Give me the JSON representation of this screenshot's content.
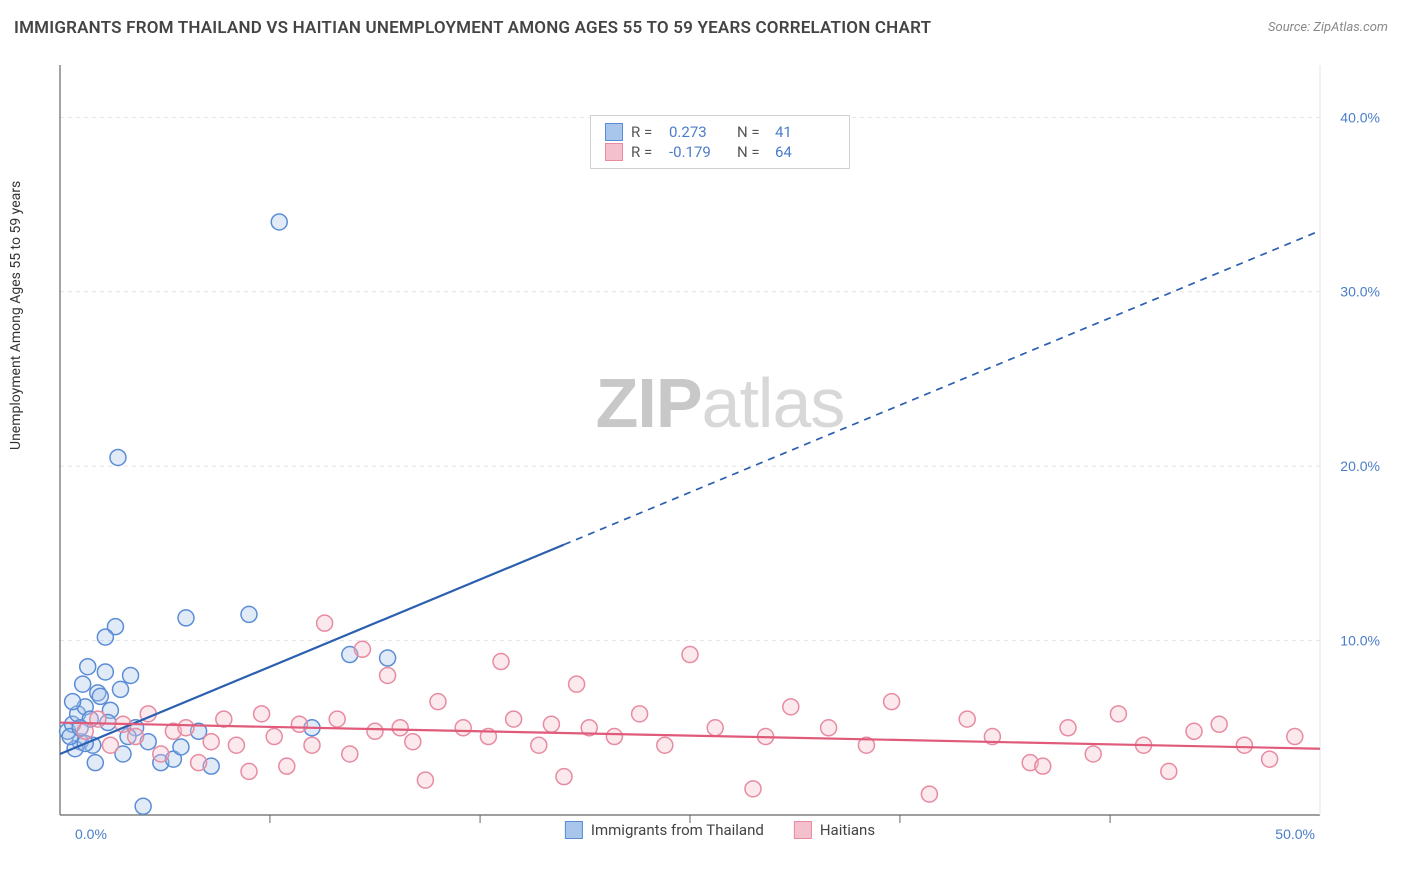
{
  "title": "IMMIGRANTS FROM THAILAND VS HAITIAN UNEMPLOYMENT AMONG AGES 55 TO 59 YEARS CORRELATION CHART",
  "source": "Source: ZipAtlas.com",
  "ylabel": "Unemployment Among Ages 55 to 59 years",
  "watermark": {
    "bold": "ZIP",
    "light": "atlas"
  },
  "chart": {
    "type": "scatter",
    "background_color": "#ffffff",
    "grid_color": "#e4e4e4",
    "axis_color": "#666666",
    "tick_color": "#4a7dc9",
    "xlim": [
      0,
      50
    ],
    "ylim": [
      0,
      43
    ],
    "xticks": [
      {
        "v": 0,
        "label": "0.0%"
      },
      {
        "v": 50,
        "label": "50.0%"
      }
    ],
    "xticks_minor": [
      8.33,
      16.67,
      25,
      33.33,
      41.67
    ],
    "yticks": [
      {
        "v": 10,
        "label": "10.0%"
      },
      {
        "v": 20,
        "label": "20.0%"
      },
      {
        "v": 30,
        "label": "30.0%"
      },
      {
        "v": 40,
        "label": "40.0%"
      }
    ],
    "marker_radius": 8,
    "marker_stroke_width": 1.5,
    "marker_fill_opacity": 0.35,
    "line_width": 2.2,
    "series": [
      {
        "name": "Immigrants from Thailand",
        "key": "thailand",
        "color": "#5b8dd6",
        "fill": "#a8c5eb",
        "line_color": "#2b5fb0",
        "R": "0.273",
        "N": "41",
        "trend": {
          "x1": 0,
          "y1": 3.5,
          "x2": 50,
          "y2": 33.5,
          "solid_until_x": 20
        },
        "points": [
          [
            0.3,
            4.8
          ],
          [
            0.5,
            5.2
          ],
          [
            0.8,
            4.2
          ],
          [
            0.7,
            5.8
          ],
          [
            1.0,
            6.2
          ],
          [
            0.6,
            3.8
          ],
          [
            1.2,
            5.5
          ],
          [
            0.4,
            4.5
          ],
          [
            1.5,
            7.0
          ],
          [
            1.8,
            8.2
          ],
          [
            2.0,
            6.0
          ],
          [
            1.3,
            4.0
          ],
          [
            2.5,
            3.5
          ],
          [
            2.2,
            10.8
          ],
          [
            1.8,
            10.2
          ],
          [
            2.8,
            8.0
          ],
          [
            3.0,
            5.0
          ],
          [
            3.5,
            4.2
          ],
          [
            4.0,
            3.0
          ],
          [
            4.5,
            3.2
          ],
          [
            5.0,
            11.3
          ],
          [
            5.5,
            4.8
          ],
          [
            6.0,
            2.8
          ],
          [
            2.3,
            20.5
          ],
          [
            7.5,
            11.5
          ],
          [
            8.7,
            34.0
          ],
          [
            10.0,
            5.0
          ],
          [
            11.5,
            9.2
          ],
          [
            13.0,
            9.0
          ],
          [
            0.9,
            7.5
          ],
          [
            1.1,
            8.5
          ],
          [
            1.4,
            3.0
          ],
          [
            0.5,
            6.5
          ],
          [
            2.7,
            4.5
          ],
          [
            3.3,
            0.5
          ],
          [
            1.9,
            5.3
          ],
          [
            2.4,
            7.2
          ],
          [
            0.8,
            5.0
          ],
          [
            1.6,
            6.8
          ],
          [
            4.8,
            3.9
          ],
          [
            1.0,
            4.1
          ]
        ]
      },
      {
        "name": "Haitians",
        "key": "haitians",
        "color": "#e88ba0",
        "fill": "#f4c0cd",
        "line_color": "#e05a7a",
        "R": "-0.179",
        "N": "64",
        "trend": {
          "x1": 0,
          "y1": 5.3,
          "x2": 50,
          "y2": 3.8,
          "solid_until_x": 50
        },
        "points": [
          [
            1.0,
            4.8
          ],
          [
            1.5,
            5.5
          ],
          [
            2.0,
            4.0
          ],
          [
            2.5,
            5.2
          ],
          [
            3.0,
            4.5
          ],
          [
            3.5,
            5.8
          ],
          [
            4.0,
            3.5
          ],
          [
            4.5,
            4.8
          ],
          [
            5.0,
            5.0
          ],
          [
            5.5,
            3.0
          ],
          [
            6.0,
            4.2
          ],
          [
            6.5,
            5.5
          ],
          [
            7.0,
            4.0
          ],
          [
            7.5,
            2.5
          ],
          [
            8.0,
            5.8
          ],
          [
            8.5,
            4.5
          ],
          [
            9.0,
            2.8
          ],
          [
            9.5,
            5.2
          ],
          [
            10.0,
            4.0
          ],
          [
            10.5,
            11.0
          ],
          [
            11.0,
            5.5
          ],
          [
            11.5,
            3.5
          ],
          [
            12.0,
            9.5
          ],
          [
            12.5,
            4.8
          ],
          [
            13.0,
            8.0
          ],
          [
            13.5,
            5.0
          ],
          [
            14.0,
            4.2
          ],
          [
            14.5,
            2.0
          ],
          [
            15.0,
            6.5
          ],
          [
            16.0,
            5.0
          ],
          [
            17.0,
            4.5
          ],
          [
            17.5,
            8.8
          ],
          [
            18.0,
            5.5
          ],
          [
            19.0,
            4.0
          ],
          [
            19.5,
            5.2
          ],
          [
            20.0,
            2.2
          ],
          [
            20.5,
            7.5
          ],
          [
            21.0,
            5.0
          ],
          [
            22.0,
            4.5
          ],
          [
            23.0,
            5.8
          ],
          [
            24.0,
            4.0
          ],
          [
            25.0,
            9.2
          ],
          [
            26.0,
            5.0
          ],
          [
            27.5,
            1.5
          ],
          [
            28.0,
            4.5
          ],
          [
            29.0,
            6.2
          ],
          [
            30.5,
            5.0
          ],
          [
            32.0,
            4.0
          ],
          [
            33.0,
            6.5
          ],
          [
            34.5,
            1.2
          ],
          [
            36.0,
            5.5
          ],
          [
            37.0,
            4.5
          ],
          [
            38.5,
            3.0
          ],
          [
            39.0,
            2.8
          ],
          [
            40.0,
            5.0
          ],
          [
            41.0,
            3.5
          ],
          [
            42.0,
            5.8
          ],
          [
            43.0,
            4.0
          ],
          [
            44.0,
            2.5
          ],
          [
            45.0,
            4.8
          ],
          [
            46.0,
            5.2
          ],
          [
            47.0,
            4.0
          ],
          [
            48.0,
            3.2
          ],
          [
            49.0,
            4.5
          ]
        ]
      }
    ]
  },
  "legend_top_labels": {
    "R": "R =",
    "N": "N ="
  },
  "legend_bottom": [
    {
      "key": "thailand",
      "label": "Immigrants from Thailand"
    },
    {
      "key": "haitians",
      "label": "Haitians"
    }
  ]
}
